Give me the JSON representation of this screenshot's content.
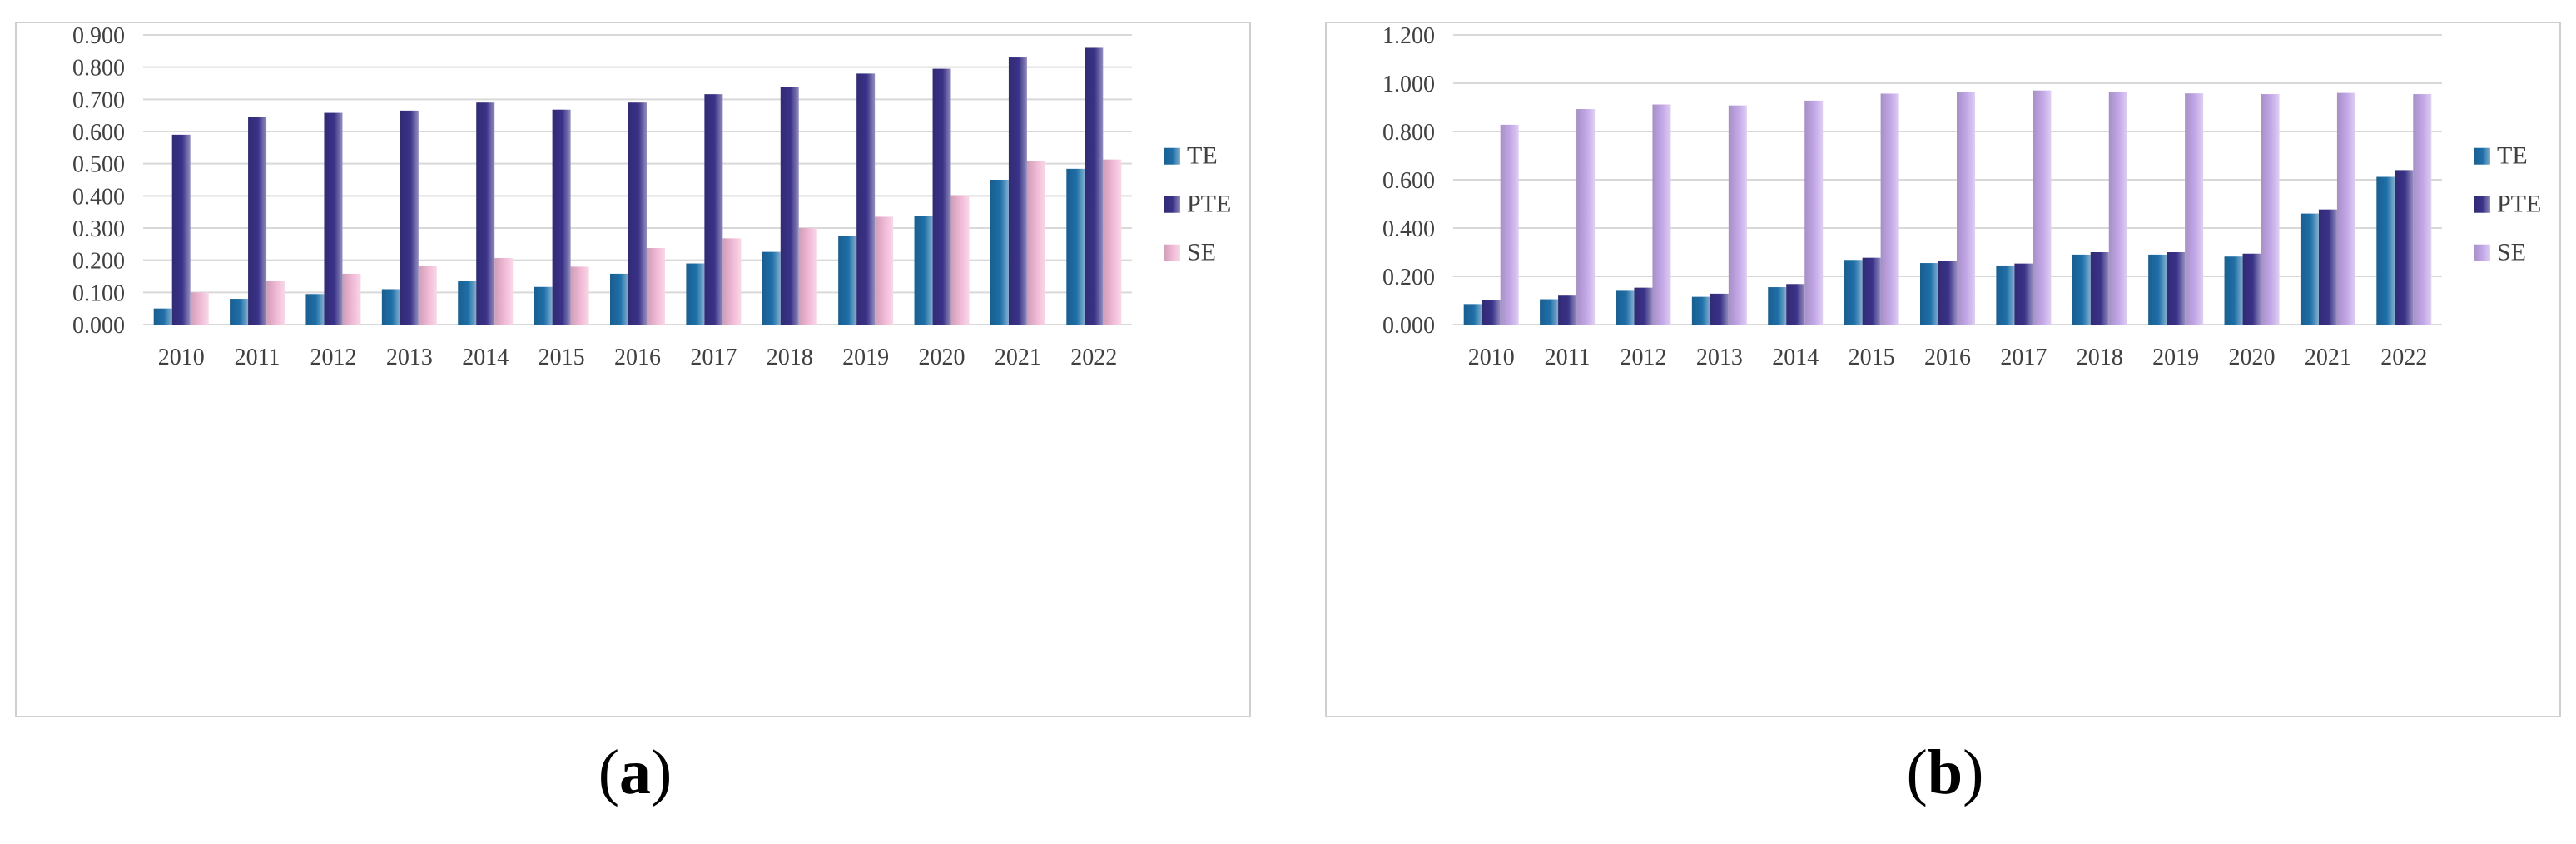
{
  "chart_data": [
    {
      "type": "bar",
      "panel_label": "a",
      "categories": [
        "2010",
        "2011",
        "2012",
        "2013",
        "2014",
        "2015",
        "2016",
        "2017",
        "2018",
        "2019",
        "2020",
        "2021",
        "2022"
      ],
      "series": [
        {
          "name": "TE",
          "values": [
            0.05,
            0.08,
            0.095,
            0.11,
            0.135,
            0.117,
            0.158,
            0.19,
            0.226,
            0.276,
            0.337,
            0.45,
            0.484
          ]
        },
        {
          "name": "PTE",
          "values": [
            0.59,
            0.645,
            0.658,
            0.665,
            0.69,
            0.668,
            0.69,
            0.716,
            0.739,
            0.78,
            0.795,
            0.83,
            0.86
          ]
        },
        {
          "name": "SE",
          "values": [
            0.1,
            0.137,
            0.158,
            0.183,
            0.207,
            0.18,
            0.238,
            0.268,
            0.3,
            0.335,
            0.402,
            0.508,
            0.513
          ]
        }
      ],
      "y_ticks": [
        "0.000",
        "0.100",
        "0.200",
        "0.300",
        "0.400",
        "0.500",
        "0.600",
        "0.700",
        "0.800",
        "0.900"
      ],
      "ylim": [
        0,
        0.9
      ],
      "title": "",
      "xlabel": "",
      "ylabel": "",
      "grid": true,
      "legend_position": "right"
    },
    {
      "type": "bar",
      "panel_label": "b",
      "categories": [
        "2010",
        "2011",
        "2012",
        "2013",
        "2014",
        "2015",
        "2016",
        "2017",
        "2018",
        "2019",
        "2020",
        "2021",
        "2022"
      ],
      "series": [
        {
          "name": "TE",
          "values": [
            0.085,
            0.105,
            0.14,
            0.115,
            0.155,
            0.268,
            0.255,
            0.245,
            0.29,
            0.29,
            0.282,
            0.46,
            0.612
          ]
        },
        {
          "name": "PTE",
          "values": [
            0.102,
            0.12,
            0.153,
            0.128,
            0.168,
            0.277,
            0.265,
            0.253,
            0.3,
            0.3,
            0.294,
            0.477,
            0.64
          ]
        },
        {
          "name": "SE",
          "values": [
            0.828,
            0.893,
            0.912,
            0.908,
            0.928,
            0.957,
            0.963,
            0.97,
            0.962,
            0.958,
            0.955,
            0.96,
            0.955
          ]
        }
      ],
      "y_ticks": [
        "0.000",
        "0.200",
        "0.400",
        "0.600",
        "0.800",
        "1.000",
        "1.200"
      ],
      "ylim": [
        0,
        1.2
      ],
      "title": "",
      "xlabel": "",
      "ylabel": "",
      "grid": true,
      "legend_position": "right"
    }
  ],
  "colors": {
    "TE": "#1e6fa8",
    "PTE": "#3a3288",
    "SE_a": "#f1b9d6",
    "SE_b": "#c3a8e8",
    "grid": "#d9d9d9"
  },
  "captions": [
    {
      "open": "(",
      "letter": "a",
      "close": ")"
    },
    {
      "open": "(",
      "letter": "b",
      "close": ")"
    }
  ]
}
